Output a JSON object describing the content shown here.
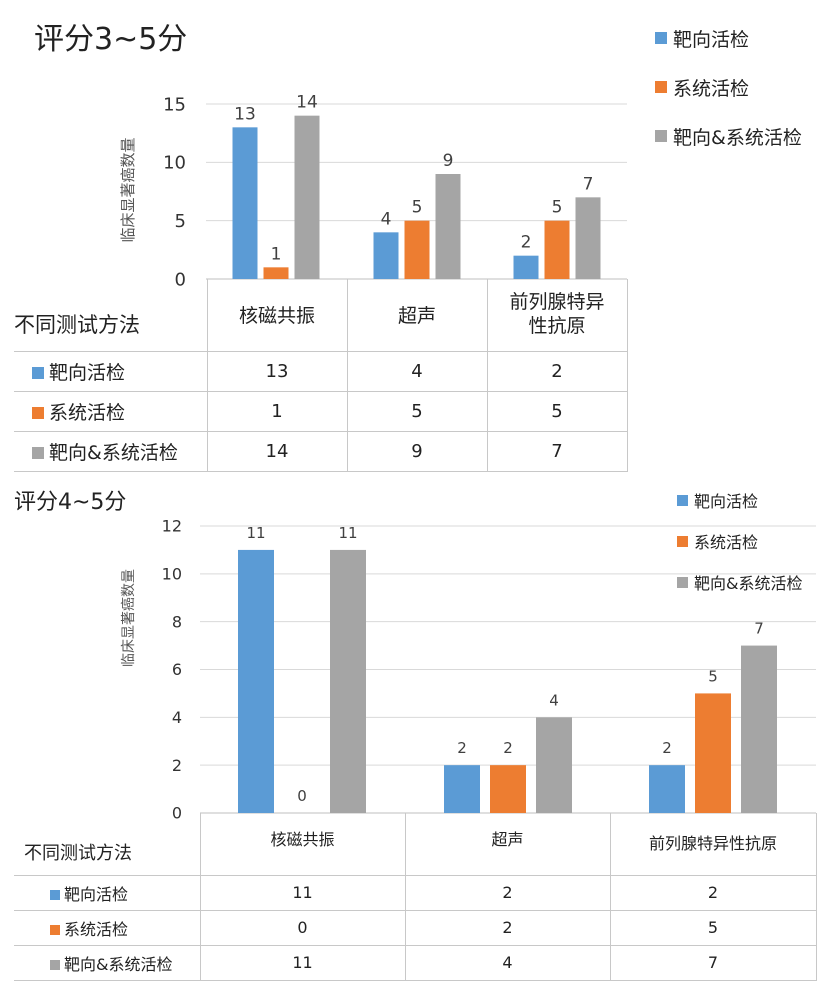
{
  "colors": {
    "series1": "#5b9bd5",
    "series2": "#ed7d31",
    "series3": "#a5a5a5",
    "grid": "#d9d9d9",
    "axis": "#bfbfbf"
  },
  "chart_data": [
    {
      "type": "bar",
      "title": "评分3~5分",
      "ylabel": "临床显著癌数量",
      "ylim": [
        0,
        15
      ],
      "yticks": [
        0,
        5,
        10,
        15
      ],
      "categories": [
        "核磁共振",
        "超声",
        "前列腺特异性抗原"
      ],
      "series": [
        {
          "name": "靶向活检",
          "values": [
            13,
            4,
            2
          ]
        },
        {
          "name": "系统活检",
          "values": [
            1,
            5,
            5
          ]
        },
        {
          "name": "靶向&系统活检",
          "values": [
            14,
            9,
            7
          ]
        }
      ],
      "table_label": "不同测试方法",
      "legend_position": "top-right",
      "grid": true
    },
    {
      "type": "bar",
      "title": "评分4~5分",
      "ylabel": "临床显著癌数量",
      "ylim": [
        0,
        12
      ],
      "yticks": [
        0,
        2,
        4,
        6,
        8,
        10,
        12
      ],
      "categories": [
        "核磁共振",
        "超声",
        "前列腺特异性抗原"
      ],
      "series": [
        {
          "name": "靶向活检",
          "values": [
            11,
            2,
            2
          ]
        },
        {
          "name": "系统活检",
          "values": [
            0,
            2,
            5
          ]
        },
        {
          "name": "靶向&系统活检",
          "values": [
            11,
            4,
            7
          ]
        }
      ],
      "table_label": "不同测试方法",
      "legend_position": "top-right",
      "grid": true
    }
  ]
}
